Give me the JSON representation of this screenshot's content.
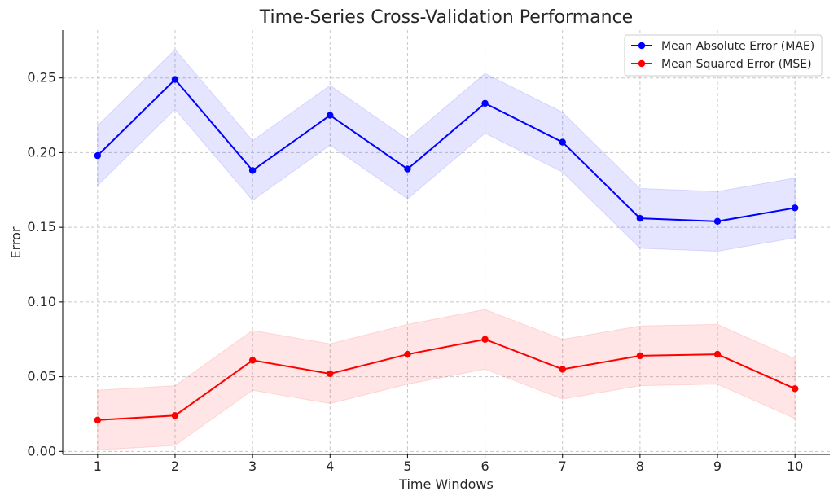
{
  "chart_data": {
    "type": "line",
    "title": "Time-Series Cross-Validation Performance",
    "xlabel": "Time Windows",
    "ylabel": "Error",
    "x": [
      1,
      2,
      3,
      4,
      5,
      6,
      7,
      8,
      9,
      10
    ],
    "xlim": [
      0.55,
      10.45
    ],
    "ylim": [
      -0.002,
      0.282
    ],
    "yticks": [
      0.0,
      0.05,
      0.1,
      0.15,
      0.2,
      0.25
    ],
    "yticklabels": [
      "0.00",
      "0.05",
      "0.10",
      "0.15",
      "0.20",
      "0.25"
    ],
    "xticklabels": [
      "1",
      "2",
      "3",
      "4",
      "5",
      "6",
      "7",
      "8",
      "9",
      "10"
    ],
    "band_halfwidth": 0.02,
    "grid": true,
    "legend_position": "top-right",
    "series": [
      {
        "name": "Mean Absolute Error (MAE)",
        "color": "#0000ff",
        "band_color": "#0000ff",
        "values": [
          0.198,
          0.249,
          0.188,
          0.225,
          0.189,
          0.233,
          0.207,
          0.156,
          0.154,
          0.163
        ]
      },
      {
        "name": "Mean Squared Error (MSE)",
        "color": "#ff0000",
        "band_color": "#ff0000",
        "values": [
          0.021,
          0.024,
          0.061,
          0.052,
          0.065,
          0.075,
          0.055,
          0.064,
          0.065,
          0.042
        ]
      }
    ]
  }
}
